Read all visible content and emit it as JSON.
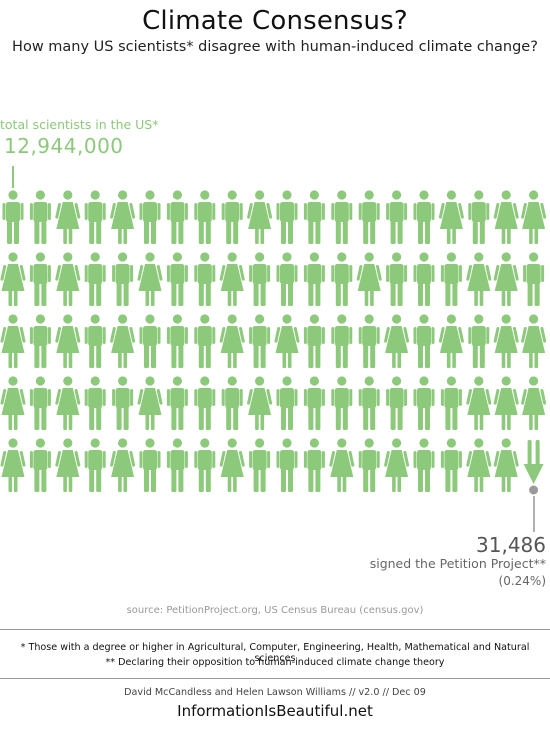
{
  "title": "Climate Consensus?",
  "subtitle": "How many US scientists* disagree with human-induced climate change?",
  "total": {
    "label": "total scientists in the US*",
    "value": "12,944,000"
  },
  "petition": {
    "value": "31,486",
    "label": "signed the Petition Project**",
    "percent": "(0.24%)"
  },
  "source": "source: PetitionProject.org, US Census Bureau (census.gov)",
  "footnotes": {
    "note1": "* Those with a degree or higher in  Agricultural, Computer, Engineering, Health, Mathematical and Natural sciences",
    "note2": "** Declaring their opposition to human-induced climate change theory"
  },
  "credit": "David McCandless and Helen Lawson Williams // v2.0 // Dec 09",
  "site": "InformationIsBeautiful.net",
  "colors": {
    "figure": "#8cc97a",
    "petition_dot": "#9a9a9a",
    "muted_text": "#666666"
  },
  "figures": {
    "rows": 5,
    "columns": 20,
    "pattern": [
      "MMFMFMMMMFMMMMMMFMFF",
      "FMFMMFMMFMMMMFMMMFFM",
      "FMFMFMMMFMFMMMFMFMFF",
      "FMFMMFMMMFMMMMMMMFFF",
      "FMFMFMMMFMMMFMFMMFFA"
    ]
  }
}
